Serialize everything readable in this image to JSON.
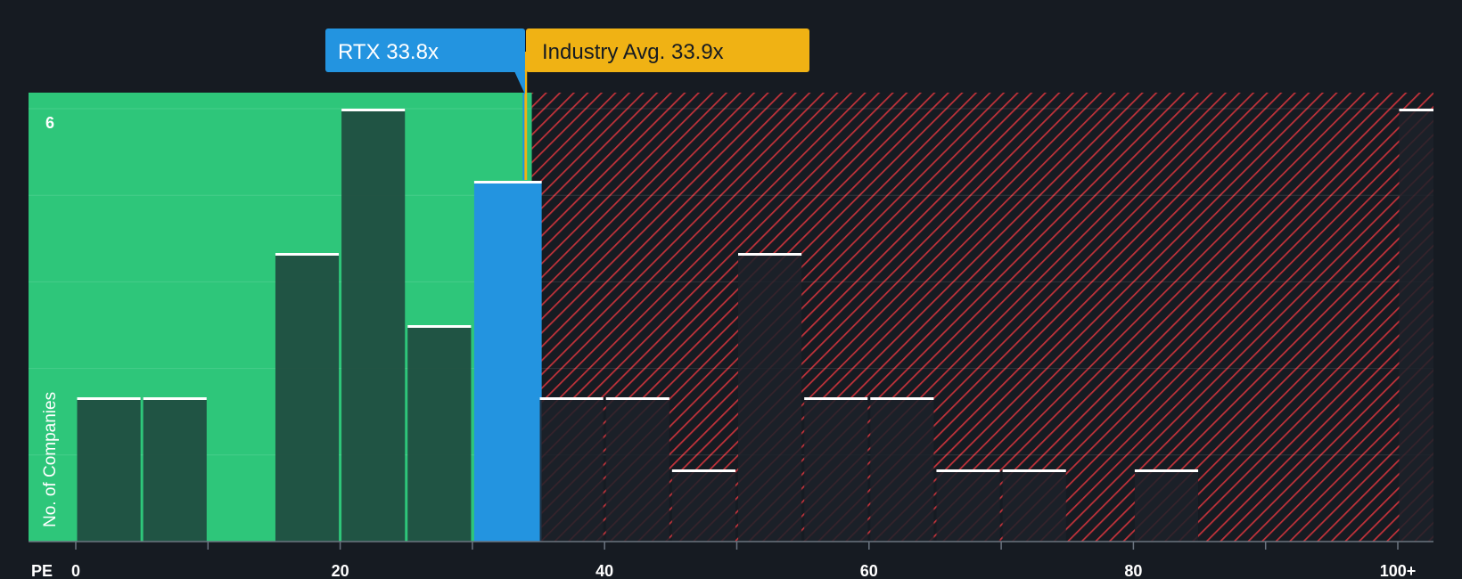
{
  "chart_data": {
    "type": "bar",
    "subject": {
      "ticker": "RTX",
      "value": 33.8,
      "label": "RTX 33.8x",
      "color": "#2394e0"
    },
    "industry": {
      "value": 33.9,
      "label": "Industry Avg. 33.9x",
      "color": "#f0b214"
    },
    "bin_width": 5,
    "bins_start": [
      0,
      5,
      10,
      15,
      20,
      25,
      30,
      35,
      40,
      45,
      50,
      55,
      60,
      65,
      70,
      75,
      80,
      85,
      90,
      95,
      100
    ],
    "values": [
      2,
      2,
      0,
      4,
      6,
      3,
      5,
      2,
      2,
      1,
      4,
      2,
      2,
      1,
      1,
      0,
      1,
      0,
      0,
      0,
      6
    ],
    "xlabel": "PE",
    "ylabel": "No. of Companies",
    "x_ticks": [
      {
        "value": 0,
        "label": "0"
      },
      {
        "value": 20,
        "label": "20"
      },
      {
        "value": 40,
        "label": "40"
      },
      {
        "value": 60,
        "label": "60"
      },
      {
        "value": 80,
        "label": "80"
      },
      {
        "value": 100,
        "label": "100+"
      }
    ],
    "y_ticks": [
      {
        "value": 6,
        "label": "6"
      }
    ],
    "ylim": [
      0,
      6
    ],
    "grid": true,
    "colors": {
      "background": "#161b22",
      "below_zone": "#2ec67a",
      "below_bar": "#1f4a3f",
      "above_bar": "#1c2129",
      "hatch": "#c0323a",
      "bar_cap": "#ffffff"
    }
  }
}
